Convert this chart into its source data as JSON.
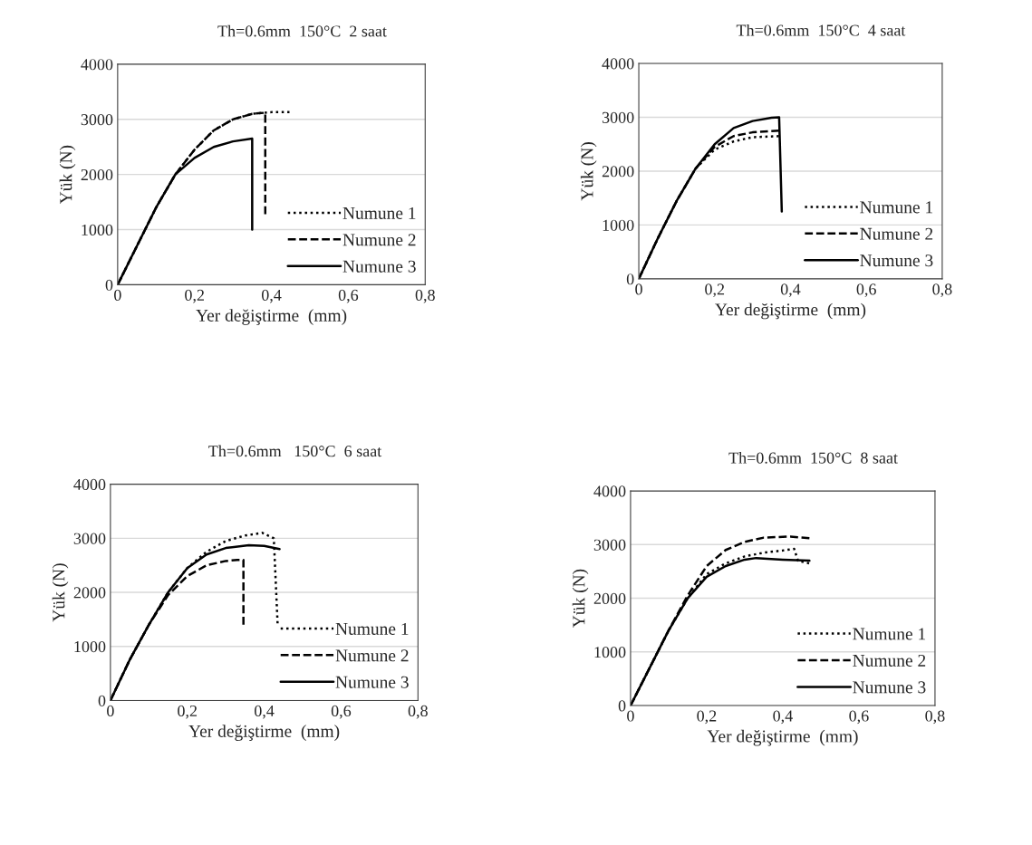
{
  "chart_data": [
    {
      "type": "line",
      "title": "Th=0.6mm  150°C  2 saat",
      "xlabel": "Yer değiştirme  (mm)",
      "ylabel": "Yük (N)",
      "xlim": [
        0,
        0.8
      ],
      "ylim": [
        0,
        4000
      ],
      "xticks": [
        0,
        {
          "value": 0.2,
          "label": "0,2"
        },
        {
          "value": 0.4,
          "label": "0,4"
        },
        {
          "value": 0.6,
          "label": "0,6"
        },
        {
          "value": 0.8,
          "label": "0,8"
        }
      ],
      "yticks": [
        0,
        1000,
        2000,
        3000,
        4000
      ],
      "grid": "y",
      "legend": "bottom right",
      "marker": "none",
      "series": [
        {
          "name": "Numune 1",
          "color": "#000000",
          "line_style": "dotted",
          "x": [
            0,
            0.05,
            0.1,
            0.15,
            0.2,
            0.25,
            0.3,
            0.35,
            0.4,
            0.447
          ],
          "values": [
            0,
            700,
            1400,
            2000,
            2450,
            2800,
            3000,
            3100,
            3130,
            3130
          ]
        },
        {
          "name": "Numune 2",
          "color": "#000000",
          "line_style": "dashed",
          "x": [
            0,
            0.05,
            0.1,
            0.15,
            0.2,
            0.25,
            0.3,
            0.35,
            0.384,
            0.384
          ],
          "values": [
            0,
            700,
            1400,
            2000,
            2450,
            2800,
            3000,
            3100,
            3120,
            1280
          ]
        },
        {
          "name": "Numune 3",
          "color": "#000000",
          "line_style": "solid",
          "x": [
            0,
            0.05,
            0.1,
            0.15,
            0.2,
            0.25,
            0.3,
            0.35,
            0.35
          ],
          "values": [
            0,
            700,
            1400,
            2000,
            2300,
            2500,
            2600,
            2650,
            1000
          ]
        }
      ]
    },
    {
      "type": "line",
      "title": "Th=0.6mm  150°C  4 saat",
      "xlabel": "Yer değiştirme  (mm)",
      "ylabel": "Yük (N)",
      "xlim": [
        0,
        0.8
      ],
      "ylim": [
        0,
        4000
      ],
      "xticks": [
        0,
        {
          "value": 0.2,
          "label": "0,2"
        },
        {
          "value": 0.4,
          "label": "0,4"
        },
        {
          "value": 0.6,
          "label": "0,6"
        },
        {
          "value": 0.8,
          "label": "0,8"
        }
      ],
      "yticks": [
        0,
        1000,
        2000,
        3000,
        4000
      ],
      "grid": "y",
      "legend": "bottom right",
      "marker": "none",
      "series": [
        {
          "name": "Numune 1",
          "color": "#000000",
          "line_style": "dotted",
          "x": [
            0,
            0.05,
            0.1,
            0.15,
            0.2,
            0.25,
            0.3,
            0.37
          ],
          "values": [
            0,
            750,
            1450,
            2050,
            2400,
            2550,
            2630,
            2650
          ]
        },
        {
          "name": "Numune 2",
          "color": "#000000",
          "line_style": "dashed",
          "x": [
            0,
            0.05,
            0.1,
            0.15,
            0.2,
            0.25,
            0.3,
            0.37
          ],
          "values": [
            0,
            750,
            1450,
            2050,
            2450,
            2650,
            2720,
            2750
          ]
        },
        {
          "name": "Numune 3",
          "color": "#000000",
          "line_style": "solid",
          "x": [
            0,
            0.05,
            0.1,
            0.15,
            0.2,
            0.25,
            0.3,
            0.35,
            0.37,
            0.377
          ],
          "values": [
            0,
            750,
            1450,
            2050,
            2500,
            2800,
            2930,
            2990,
            3000,
            1250
          ]
        }
      ]
    },
    {
      "type": "line",
      "title": "Th=0.6mm   150°C  6 saat",
      "xlabel": "Yer değiştirme  (mm)",
      "ylabel": "Yük (N)",
      "xlim": [
        0,
        0.8
      ],
      "ylim": [
        0,
        4000
      ],
      "xticks": [
        0,
        {
          "value": 0.2,
          "label": "0,2"
        },
        {
          "value": 0.4,
          "label": "0,4"
        },
        {
          "value": 0.6,
          "label": "0,6"
        },
        {
          "value": 0.8,
          "label": "0,8"
        }
      ],
      "yticks": [
        0,
        1000,
        2000,
        3000,
        4000
      ],
      "grid": "y",
      "legend": "bottom right",
      "marker": "none",
      "series": [
        {
          "name": "Numune 1",
          "color": "#000000",
          "line_style": "dotted",
          "x": [
            0,
            0.05,
            0.1,
            0.15,
            0.2,
            0.25,
            0.3,
            0.35,
            0.395,
            0.425,
            0.435
          ],
          "values": [
            0,
            750,
            1400,
            2000,
            2450,
            2750,
            2950,
            3050,
            3100,
            3000,
            1400
          ]
        },
        {
          "name": "Numune 2",
          "color": "#000000",
          "line_style": "dashed",
          "x": [
            0,
            0.05,
            0.1,
            0.15,
            0.2,
            0.25,
            0.3,
            0.33,
            0.346,
            0.346
          ],
          "values": [
            0,
            750,
            1400,
            1950,
            2300,
            2500,
            2580,
            2600,
            2600,
            1400
          ]
        },
        {
          "name": "Numune 3",
          "color": "#000000",
          "line_style": "solid",
          "x": [
            0,
            0.05,
            0.1,
            0.15,
            0.2,
            0.25,
            0.3,
            0.36,
            0.4,
            0.44
          ],
          "values": [
            0,
            750,
            1400,
            2000,
            2450,
            2700,
            2820,
            2870,
            2860,
            2800
          ]
        }
      ]
    },
    {
      "type": "line",
      "title": "Th=0.6mm  150°C  8 saat",
      "xlabel": "Yer değiştirme  (mm)",
      "ylabel": "Yük (N)",
      "xlim": [
        0,
        0.8
      ],
      "ylim": [
        0,
        4000
      ],
      "xticks": [
        0,
        {
          "value": 0.2,
          "label": "0,2"
        },
        {
          "value": 0.4,
          "label": "0,4"
        },
        {
          "value": 0.6,
          "label": "0,6"
        },
        {
          "value": 0.8,
          "label": "0,8"
        }
      ],
      "yticks": [
        0,
        1000,
        2000,
        3000,
        4000
      ],
      "grid": "y",
      "legend": "bottom right",
      "marker": "none",
      "series": [
        {
          "name": "Numune 1",
          "color": "#000000",
          "line_style": "dotted",
          "x": [
            0,
            0.05,
            0.1,
            0.15,
            0.2,
            0.25,
            0.3,
            0.35,
            0.4,
            0.43,
            0.44,
            0.47
          ],
          "values": [
            0,
            700,
            1400,
            2000,
            2450,
            2650,
            2780,
            2850,
            2890,
            2920,
            2700,
            2650
          ]
        },
        {
          "name": "Numune 2",
          "color": "#000000",
          "line_style": "dashed",
          "x": [
            0,
            0.05,
            0.1,
            0.15,
            0.2,
            0.25,
            0.3,
            0.35,
            0.42,
            0.47
          ],
          "values": [
            0,
            700,
            1400,
            2050,
            2600,
            2900,
            3050,
            3130,
            3150,
            3120
          ]
        },
        {
          "name": "Numune 3",
          "color": "#000000",
          "line_style": "solid",
          "x": [
            0,
            0.05,
            0.1,
            0.15,
            0.2,
            0.25,
            0.3,
            0.33,
            0.4,
            0.47
          ],
          "values": [
            0,
            700,
            1400,
            2000,
            2400,
            2600,
            2720,
            2750,
            2720,
            2700
          ]
        }
      ]
    }
  ]
}
